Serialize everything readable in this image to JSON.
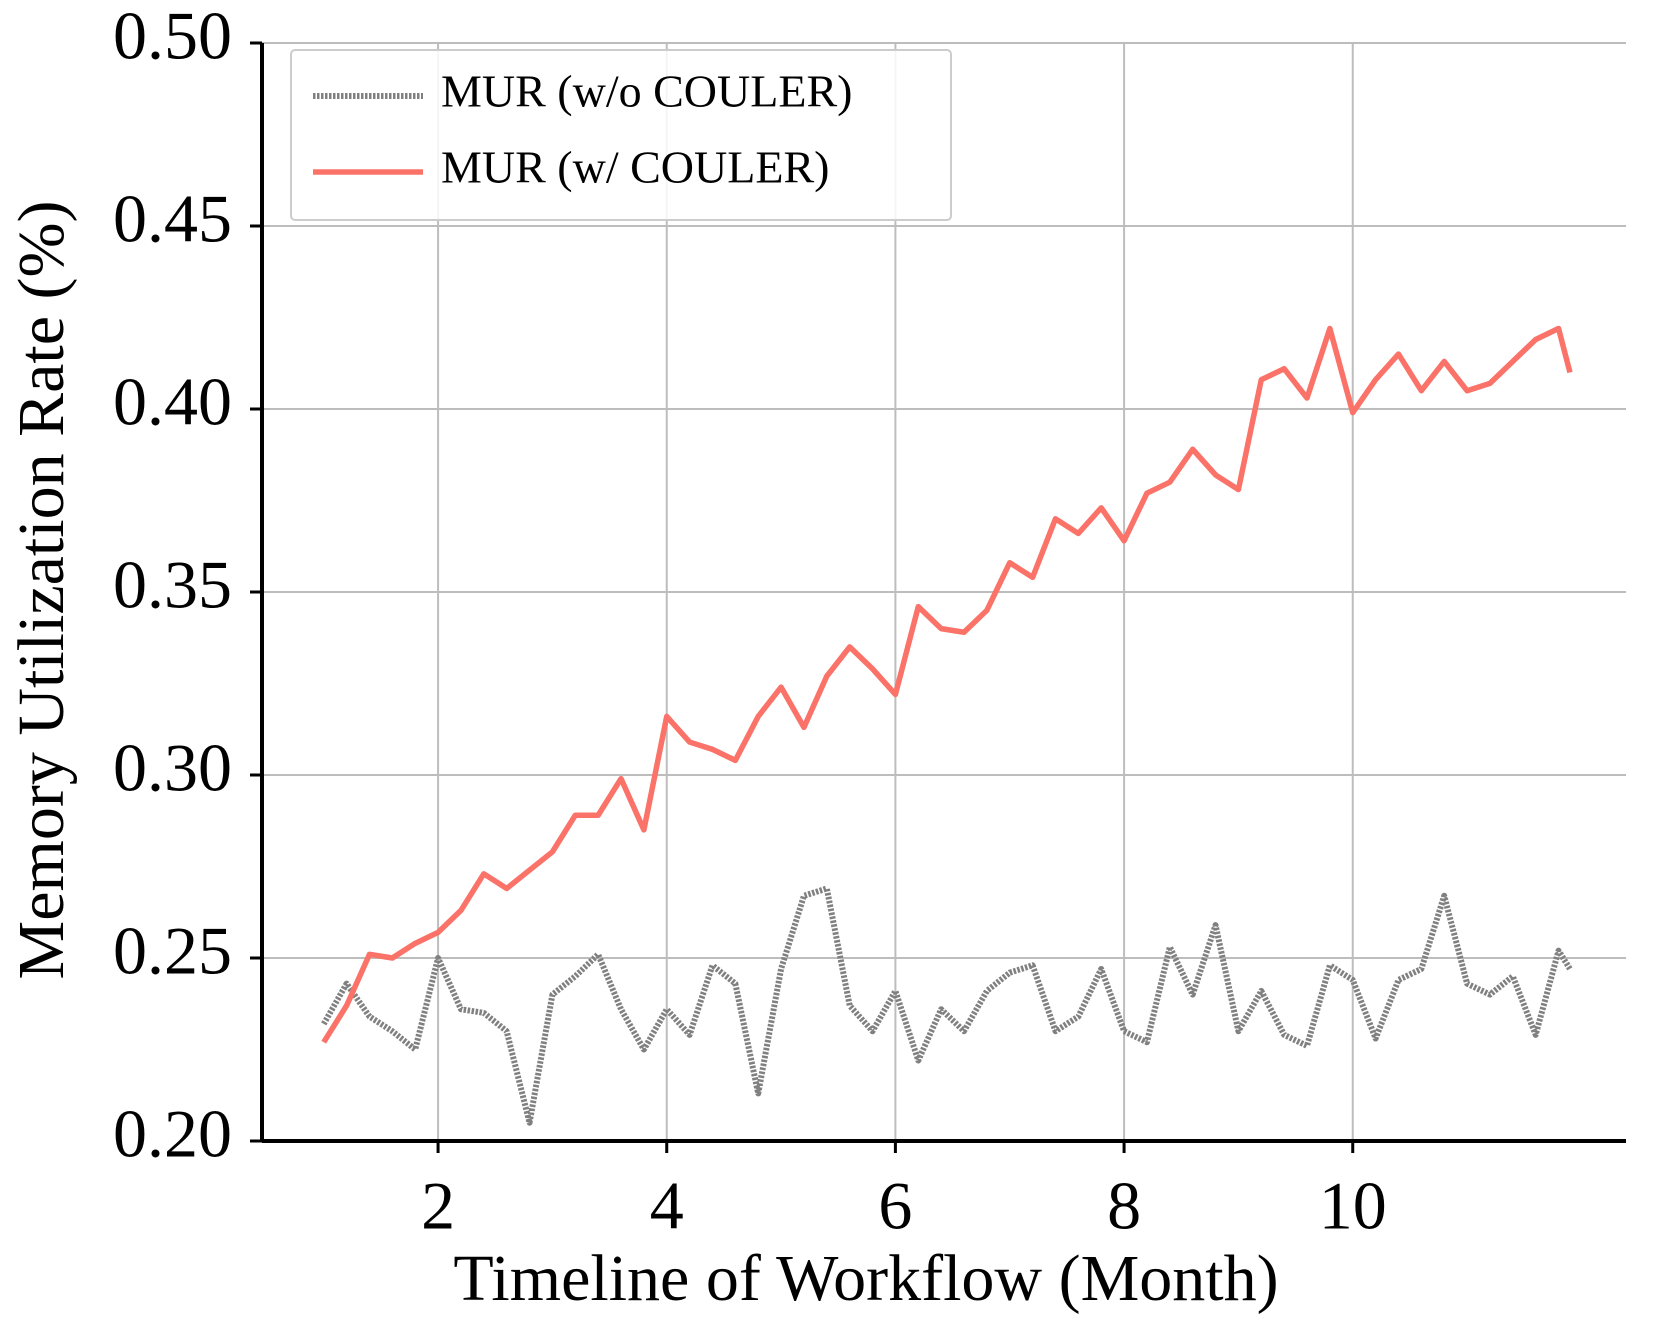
{
  "chart_data": {
    "type": "line",
    "x_label": "Timeline of Workflow (Month)",
    "y_label": "Memory Utilization Rate (%)",
    "x": [
      1.0,
      1.2,
      1.4,
      1.6,
      1.8,
      2.0,
      2.2,
      2.4,
      2.6,
      2.8,
      3.0,
      3.2,
      3.4,
      3.6,
      3.8,
      4.0,
      4.2,
      4.4,
      4.6,
      4.8,
      5.0,
      5.2,
      5.4,
      5.6,
      5.8,
      6.0,
      6.2,
      6.4,
      6.6,
      6.8,
      7.0,
      7.2,
      7.4,
      7.6,
      7.8,
      8.0,
      8.2,
      8.4,
      8.6,
      8.8,
      9.0,
      9.2,
      9.4,
      9.6,
      9.8,
      10.0,
      10.2,
      10.4,
      10.6,
      10.8,
      11.0,
      11.2,
      11.4,
      11.6,
      11.8,
      11.9
    ],
    "series": [
      {
        "name": "MUR (w/o COULER)",
        "color": "#808080",
        "dashed": true,
        "values": [
          0.232,
          0.243,
          0.234,
          0.23,
          0.225,
          0.25,
          0.236,
          0.235,
          0.23,
          0.205,
          0.24,
          0.245,
          0.251,
          0.236,
          0.225,
          0.236,
          0.229,
          0.248,
          0.243,
          0.213,
          0.247,
          0.267,
          0.269,
          0.237,
          0.23,
          0.241,
          0.222,
          0.236,
          0.23,
          0.241,
          0.246,
          0.248,
          0.23,
          0.234,
          0.247,
          0.23,
          0.227,
          0.253,
          0.24,
          0.259,
          0.23,
          0.241,
          0.229,
          0.226,
          0.248,
          0.244,
          0.228,
          0.244,
          0.247,
          0.267,
          0.243,
          0.24,
          0.245,
          0.229,
          0.252,
          0.247
        ]
      },
      {
        "name": "MUR (w/ COULER)",
        "color": "#fa7268",
        "dashed": false,
        "values": [
          0.227,
          0.237,
          0.251,
          0.25,
          0.254,
          0.257,
          0.263,
          0.273,
          0.269,
          0.274,
          0.279,
          0.289,
          0.289,
          0.299,
          0.285,
          0.316,
          0.309,
          0.307,
          0.304,
          0.316,
          0.324,
          0.313,
          0.327,
          0.335,
          0.329,
          0.322,
          0.346,
          0.34,
          0.339,
          0.345,
          0.358,
          0.354,
          0.37,
          0.366,
          0.373,
          0.364,
          0.377,
          0.38,
          0.389,
          0.382,
          0.378,
          0.408,
          0.411,
          0.403,
          0.422,
          0.399,
          0.408,
          0.415,
          0.405,
          0.413,
          0.405,
          0.407,
          0.413,
          0.419,
          0.422,
          0.41
        ]
      }
    ],
    "xlim": [
      0.46,
      12.39
    ],
    "ylim": [
      0.2,
      0.5
    ],
    "xticks": [
      2,
      4,
      6,
      8,
      10
    ],
    "yticks": [
      {
        "value": 0.2,
        "label": "0.20"
      },
      {
        "value": 0.25,
        "label": "0.25"
      },
      {
        "value": 0.3,
        "label": "0.30"
      },
      {
        "value": 0.35,
        "label": "0.35"
      },
      {
        "value": 0.4,
        "label": "0.40"
      },
      {
        "value": 0.45,
        "label": "0.45"
      },
      {
        "value": 0.5,
        "label": "0.50"
      }
    ],
    "grid": true,
    "legend": "upper-left"
  }
}
